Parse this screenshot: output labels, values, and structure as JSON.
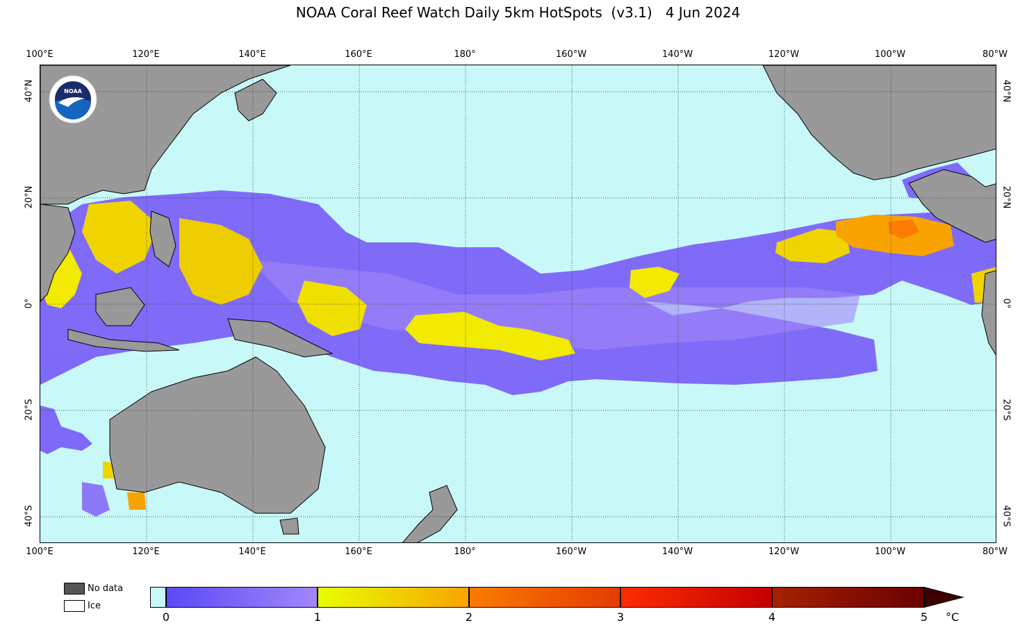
{
  "title": "NOAA Coral Reef Watch Daily 5km HotSpots  (v3.1)   4 Jun 2024",
  "lon_labels": [
    "100°E",
    "120°E",
    "140°E",
    "160°E",
    "180°",
    "160°W",
    "140°W",
    "120°W",
    "100°W",
    "80°W"
  ],
  "lat_labels_left": [
    "40°N",
    "20°N",
    "0°",
    "20°S",
    "40°S"
  ],
  "lat_labels_right": [
    "40°N",
    "20°N",
    "0°",
    "20°S",
    "40°S"
  ],
  "legend": {
    "no_data": "No data",
    "ice": "Ice"
  },
  "colorbar": {
    "ticks": [
      "0",
      "1",
      "2",
      "3",
      "4",
      "5"
    ],
    "unit": "°C",
    "colors": {
      "below_zero": "#c8f8f8",
      "purple_range": [
        "#5a49f8",
        "#a287f9"
      ],
      "yellow_orange_range": [
        "#e8ff00",
        "#f9a300"
      ],
      "orange_red_range": [
        "#fb7c00",
        "#e43b00"
      ],
      "red_range": [
        "#fd2d00",
        "#c40000"
      ],
      "dark_red_range": [
        "#a62100",
        "#6a0000"
      ],
      "extend": "#3d0000"
    }
  },
  "map_colors": {
    "ocean": "#c8f8f8",
    "land": "#999999",
    "no_data": "#555555"
  },
  "logo": {
    "name": "noaa-logo",
    "text": "NOAA"
  }
}
